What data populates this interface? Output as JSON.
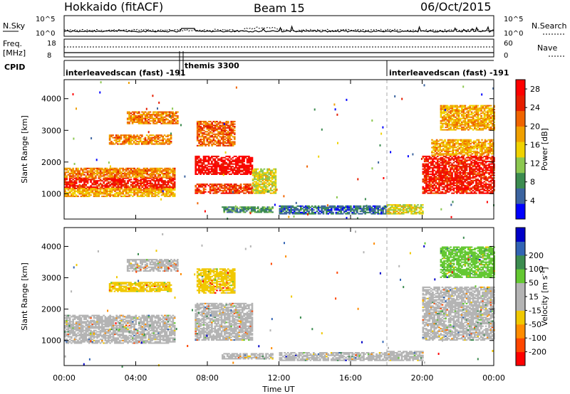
{
  "header": {
    "radar": "Hokkaido (fitACF)",
    "beam": "Beam 15",
    "date": "06/Oct/2015"
  },
  "noise_panel": {
    "left_label": "N.Sky",
    "right_label": "N.Search",
    "left_ticks": [
      "10^5",
      "10^0"
    ],
    "right_ticks": [
      "10^5",
      "10^0"
    ]
  },
  "freq_panel": {
    "left_label_1": "Freq.",
    "left_label_2": "[MHz]",
    "left_ticks": [
      "18",
      "8"
    ],
    "right_label": "Nave",
    "right_ticks": [
      "60",
      "0"
    ]
  },
  "cpid": {
    "label": "CPID",
    "segments": [
      {
        "name": "interleavedscan (fast) -191",
        "start_hour": 0,
        "end_hour": 6.3
      },
      {
        "name": "themis 3300",
        "start_hour": 6.5,
        "end_hour": 18.0
      },
      {
        "name": "interleavedscan (fast) -191",
        "start_hour": 18.0,
        "end_hour": 24
      }
    ]
  },
  "x_axis": {
    "label": "Time UT",
    "ticks": [
      "00:00",
      "04:00",
      "08:00",
      "12:00",
      "16:00",
      "20:00",
      "00:00"
    ]
  },
  "colors": {
    "power_scale": [
      "#0000ff",
      "#3c64a0",
      "#3c8c50",
      "#8cc850",
      "#f0d200",
      "#f0a000",
      "#f06400",
      "#e61e00",
      "#ff0000"
    ],
    "velocity_scale": [
      "#ff0000",
      "#ff4600",
      "#ff8c00",
      "#f0c800",
      "#b4b4b4",
      "#b4b4b4",
      "#64c832",
      "#3c8c50",
      "#3264b4",
      "#0000c8"
    ]
  },
  "chart_data": [
    {
      "type": "heatmap",
      "title": "",
      "xlabel": "",
      "ylabel": "Slant Range [km]",
      "xlim": [
        0,
        24
      ],
      "ylim": [
        200,
        4600
      ],
      "yticks": [
        "1000",
        "2000",
        "3000",
        "4000"
      ],
      "colorbar": {
        "label": "Power [dB]",
        "ticks": [
          "4",
          "8",
          "12",
          "16",
          "20",
          "24",
          "28"
        ],
        "range": [
          0,
          30
        ]
      },
      "regions": [
        {
          "t0": 0.0,
          "t1": 6.2,
          "r0": 1150,
          "r1": 1500,
          "level": 26
        },
        {
          "t0": 0.0,
          "t1": 6.2,
          "r0": 1500,
          "r1": 1800,
          "level": 20
        },
        {
          "t0": 0.0,
          "t1": 6.2,
          "r0": 900,
          "r1": 1150,
          "level": 18
        },
        {
          "t0": 2.5,
          "t1": 6.0,
          "r0": 2550,
          "r1": 2850,
          "level": 20
        },
        {
          "t0": 3.5,
          "t1": 6.3,
          "r0": 3200,
          "r1": 3600,
          "level": 20
        },
        {
          "t0": 7.3,
          "t1": 10.5,
          "r0": 1600,
          "r1": 2200,
          "level": 28
        },
        {
          "t0": 7.3,
          "t1": 10.5,
          "r0": 1000,
          "r1": 1300,
          "level": 24
        },
        {
          "t0": 7.4,
          "t1": 9.5,
          "r0": 2500,
          "r1": 3300,
          "level": 22
        },
        {
          "t0": 8.8,
          "t1": 11.6,
          "r0": 400,
          "r1": 600,
          "level": 8
        },
        {
          "t0": 10.5,
          "t1": 11.8,
          "r0": 1000,
          "r1": 1800,
          "level": 14
        },
        {
          "t0": 12.0,
          "t1": 18.0,
          "r0": 350,
          "r1": 600,
          "level": 6
        },
        {
          "t0": 18.0,
          "t1": 20.0,
          "r0": 350,
          "r1": 650,
          "level": 14
        },
        {
          "t0": 20.0,
          "t1": 24.0,
          "r0": 1000,
          "r1": 2200,
          "level": 26
        },
        {
          "t0": 20.5,
          "t1": 24.0,
          "r0": 2200,
          "r1": 2700,
          "level": 18
        },
        {
          "t0": 21.0,
          "t1": 24.0,
          "r0": 3000,
          "r1": 3800,
          "level": 18
        }
      ]
    },
    {
      "type": "heatmap",
      "title": "",
      "xlabel": "Time UT",
      "ylabel": "Slant Range [km]",
      "xlim": [
        0,
        24
      ],
      "ylim": [
        200,
        4600
      ],
      "yticks": [
        "1000",
        "2000",
        "3000",
        "4000"
      ],
      "colorbar": {
        "label": "Velocity [m s^-1]",
        "ticks": [
          "-200",
          "-100",
          "-50",
          "-15",
          "15",
          "50",
          "100",
          "200"
        ],
        "range": [
          -250,
          250
        ]
      },
      "regions": [
        {
          "t0": 0.0,
          "t1": 6.2,
          "r0": 900,
          "r1": 1800,
          "level": 0
        },
        {
          "t0": 2.5,
          "t1": 6.0,
          "r0": 2550,
          "r1": 2850,
          "level": -60
        },
        {
          "t0": 3.5,
          "t1": 6.3,
          "r0": 3200,
          "r1": 3600,
          "level": -40
        },
        {
          "t0": 7.3,
          "t1": 10.5,
          "r0": 1000,
          "r1": 2200,
          "level": 0
        },
        {
          "t0": 7.4,
          "t1": 9.5,
          "r0": 2500,
          "r1": 3300,
          "level": -60
        },
        {
          "t0": 8.8,
          "t1": 11.6,
          "r0": 400,
          "r1": 600,
          "level": 0
        },
        {
          "t0": 12.0,
          "t1": 18.0,
          "r0": 350,
          "r1": 600,
          "level": 40
        },
        {
          "t0": 18.0,
          "t1": 20.0,
          "r0": 350,
          "r1": 650,
          "level": 40
        },
        {
          "t0": 20.0,
          "t1": 24.0,
          "r0": 1000,
          "r1": 2700,
          "level": 0
        },
        {
          "t0": 21.0,
          "t1": 24.0,
          "r0": 3000,
          "r1": 4000,
          "level": 60
        }
      ]
    }
  ]
}
